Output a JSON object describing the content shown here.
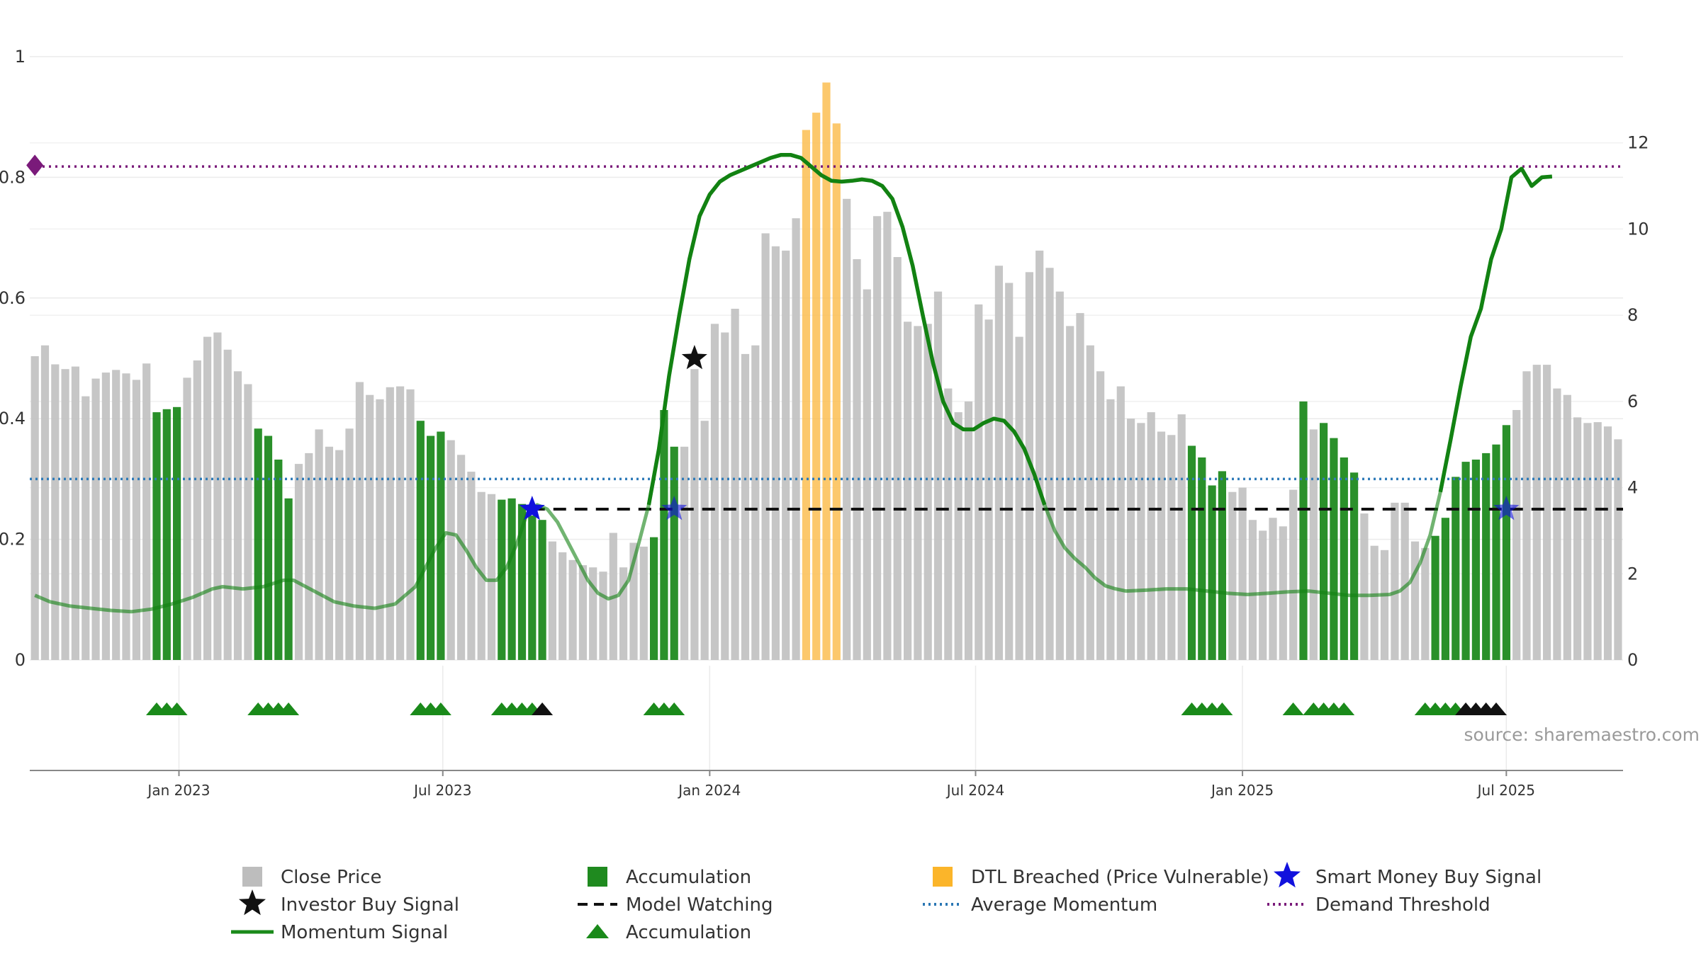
{
  "chart_data": {
    "type": "bar",
    "source_note": "source: sharemaestro.com",
    "left_axis": {
      "ylim": [
        0,
        1
      ],
      "ticks": [
        "0",
        "0.2",
        "0.4",
        "0.6",
        "0.8",
        "1"
      ],
      "tick_values": [
        0,
        0.2,
        0.4,
        0.6,
        0.8,
        1
      ]
    },
    "right_axis": {
      "ylim": [
        0,
        14
      ],
      "ticks": [
        "0",
        "2",
        "4",
        "6",
        "8",
        "10",
        "12"
      ],
      "tick_values": [
        0,
        2,
        4,
        6,
        8,
        10,
        12
      ]
    },
    "x_axis": {
      "tick_labels": [
        "Jan 2023",
        "Jul 2023",
        "Jan 2024",
        "Jul 2024",
        "Jan 2025",
        "Jul 2025"
      ],
      "tick_positions": [
        14.7,
        40.7,
        67.0,
        93.2,
        119.5,
        145.5
      ],
      "range": [
        0,
        157
      ]
    },
    "close_price_values": [
      7.05,
      7.3,
      6.86,
      6.75,
      6.81,
      6.12,
      6.53,
      6.67,
      6.73,
      6.65,
      6.5,
      6.88,
      5.75,
      5.82,
      5.87,
      6.55,
      6.95,
      7.5,
      7.6,
      7.2,
      6.7,
      6.4,
      5.37,
      5.2,
      4.65,
      3.75,
      4.55,
      4.8,
      5.35,
      4.95,
      4.87,
      5.37,
      6.45,
      6.15,
      6.05,
      6.33,
      6.35,
      6.28,
      5.55,
      5.2,
      5.3,
      5.1,
      4.76,
      4.37,
      3.9,
      3.85,
      3.72,
      3.75,
      3.62,
      3.35,
      3.25,
      2.75,
      2.5,
      2.32,
      2.2,
      2.15,
      2.05,
      2.95,
      2.15,
      2.72,
      2.63,
      2.85,
      5.8,
      4.95,
      4.95,
      6.75,
      5.55,
      7.8,
      7.6,
      8.15,
      7.1,
      7.3,
      9.9,
      9.6,
      9.5,
      10.25,
      12.3,
      12.7,
      13.4,
      12.45,
      10.7,
      9.3,
      8.6,
      10.3,
      10.4,
      9.35,
      7.85,
      7.75,
      7.8,
      8.55,
      6.3,
      5.75,
      6.0,
      8.25,
      7.9,
      9.15,
      8.75,
      7.5,
      9.0,
      9.5,
      9.1,
      8.55,
      7.75,
      8.05,
      7.3,
      6.7,
      6.05,
      6.35,
      5.6,
      5.5,
      5.75,
      5.3,
      5.22,
      5.7,
      4.97,
      4.7,
      4.05,
      4.38,
      3.9,
      4.0,
      3.25,
      3.0,
      3.3,
      3.1,
      3.95,
      6.0,
      5.35,
      5.5,
      5.15,
      4.7,
      4.35,
      3.4,
      2.65,
      2.55,
      3.65,
      3.65,
      2.75,
      2.6,
      2.88,
      3.3,
      4.25,
      4.6,
      4.65,
      4.8,
      5.0,
      5.45,
      5.8,
      6.7,
      6.85,
      6.85,
      6.3,
      6.15,
      5.63,
      5.5,
      5.52,
      5.42,
      5.12
    ],
    "bar_category": [
      "g",
      "g",
      "g",
      "g",
      "g",
      "g",
      "g",
      "g",
      "g",
      "g",
      "g",
      "g",
      "a",
      "a",
      "a",
      "g",
      "g",
      "g",
      "g",
      "g",
      "g",
      "g",
      "a",
      "a",
      "a",
      "a",
      "g",
      "g",
      "g",
      "g",
      "g",
      "g",
      "g",
      "g",
      "g",
      "g",
      "g",
      "g",
      "a",
      "a",
      "a",
      "g",
      "g",
      "g",
      "g",
      "g",
      "a",
      "a",
      "a",
      "a",
      "a",
      "g",
      "g",
      "g",
      "g",
      "g",
      "g",
      "g",
      "g",
      "g",
      "g",
      "a",
      "a",
      "a",
      "g",
      "g",
      "g",
      "g",
      "g",
      "g",
      "g",
      "g",
      "g",
      "g",
      "g",
      "g",
      "d",
      "d",
      "d",
      "d",
      "g",
      "g",
      "g",
      "g",
      "g",
      "g",
      "g",
      "g",
      "g",
      "g",
      "g",
      "g",
      "g",
      "g",
      "g",
      "g",
      "g",
      "g",
      "g",
      "g",
      "g",
      "g",
      "g",
      "g",
      "g",
      "g",
      "g",
      "g",
      "g",
      "g",
      "g",
      "g",
      "g",
      "g",
      "a",
      "a",
      "a",
      "a",
      "g",
      "g",
      "g",
      "g",
      "g",
      "g",
      "g",
      "a",
      "g",
      "a",
      "a",
      "a",
      "a",
      "g",
      "g",
      "g",
      "g",
      "g",
      "g",
      "g",
      "a",
      "a",
      "a",
      "a",
      "a",
      "a",
      "a",
      "a",
      "g",
      "g",
      "g",
      "g",
      "g",
      "g",
      "g",
      "g",
      "g",
      "g",
      "g",
      "g"
    ],
    "momentum_signal": {
      "name": "Momentum Signal",
      "points": [
        [
          0.5,
          1.5
        ],
        [
          2,
          1.35
        ],
        [
          4,
          1.25
        ],
        [
          6,
          1.2
        ],
        [
          8,
          1.15
        ],
        [
          10,
          1.12
        ],
        [
          12,
          1.18
        ],
        [
          14,
          1.3
        ],
        [
          16,
          1.45
        ],
        [
          18,
          1.65
        ],
        [
          19,
          1.7
        ],
        [
          21,
          1.65
        ],
        [
          23,
          1.7
        ],
        [
          25,
          1.85
        ],
        [
          26,
          1.85
        ],
        [
          28,
          1.6
        ],
        [
          30,
          1.35
        ],
        [
          32,
          1.25
        ],
        [
          34,
          1.2
        ],
        [
          36,
          1.3
        ],
        [
          38,
          1.7
        ],
        [
          40,
          2.6
        ],
        [
          41,
          2.95
        ],
        [
          42,
          2.9
        ],
        [
          43,
          2.55
        ],
        [
          44,
          2.15
        ],
        [
          45,
          1.85
        ],
        [
          46,
          1.85
        ],
        [
          47,
          2.15
        ],
        [
          48,
          2.7
        ],
        [
          49,
          3.4
        ],
        [
          50,
          3.6
        ],
        [
          51,
          3.5
        ],
        [
          52,
          3.2
        ],
        [
          53,
          2.75
        ],
        [
          54,
          2.3
        ],
        [
          55,
          1.85
        ],
        [
          56,
          1.55
        ],
        [
          57,
          1.42
        ],
        [
          58,
          1.5
        ],
        [
          59,
          1.85
        ],
        [
          60,
          2.7
        ],
        [
          61,
          3.6
        ],
        [
          62,
          4.9
        ],
        [
          63,
          6.6
        ],
        [
          64,
          8.0
        ],
        [
          65,
          9.3
        ],
        [
          66,
          10.3
        ],
        [
          67,
          10.8
        ],
        [
          68,
          11.1
        ],
        [
          69,
          11.25
        ],
        [
          71,
          11.45
        ],
        [
          73,
          11.65
        ],
        [
          74,
          11.72
        ],
        [
          75,
          11.72
        ],
        [
          76,
          11.65
        ],
        [
          77,
          11.45
        ],
        [
          78,
          11.25
        ],
        [
          79,
          11.12
        ],
        [
          80,
          11.1
        ],
        [
          81,
          11.12
        ],
        [
          82,
          11.15
        ],
        [
          83,
          11.12
        ],
        [
          84,
          11.0
        ],
        [
          85,
          10.7
        ],
        [
          86,
          10.05
        ],
        [
          87,
          9.15
        ],
        [
          88,
          8.0
        ],
        [
          89,
          6.9
        ],
        [
          90,
          6.0
        ],
        [
          91,
          5.5
        ],
        [
          92,
          5.35
        ],
        [
          93,
          5.35
        ],
        [
          94,
          5.5
        ],
        [
          95,
          5.6
        ],
        [
          96,
          5.55
        ],
        [
          97,
          5.3
        ],
        [
          98,
          4.9
        ],
        [
          99,
          4.3
        ],
        [
          100,
          3.6
        ],
        [
          101,
          3.0
        ],
        [
          102,
          2.6
        ],
        [
          103,
          2.35
        ],
        [
          104,
          2.15
        ],
        [
          105,
          1.9
        ],
        [
          106,
          1.72
        ],
        [
          107,
          1.65
        ],
        [
          108,
          1.6
        ],
        [
          110,
          1.62
        ],
        [
          112,
          1.65
        ],
        [
          114,
          1.65
        ],
        [
          116,
          1.6
        ],
        [
          118,
          1.55
        ],
        [
          120,
          1.52
        ],
        [
          122,
          1.55
        ],
        [
          124,
          1.58
        ],
        [
          126,
          1.6
        ],
        [
          128,
          1.55
        ],
        [
          130,
          1.5
        ],
        [
          132,
          1.5
        ],
        [
          134,
          1.52
        ],
        [
          135,
          1.6
        ],
        [
          136,
          1.8
        ],
        [
          137,
          2.25
        ],
        [
          138,
          2.9
        ],
        [
          139,
          3.9
        ],
        [
          140,
          5.1
        ],
        [
          141,
          6.35
        ],
        [
          142,
          7.5
        ],
        [
          143,
          8.15
        ],
        [
          144,
          9.3
        ],
        [
          145,
          10.0
        ],
        [
          146,
          11.2
        ],
        [
          147,
          11.4
        ],
        [
          148,
          11.0
        ],
        [
          149,
          11.2
        ],
        [
          150,
          11.22
        ]
      ]
    },
    "model_watching": {
      "name": "Model Watching",
      "value": 3.5,
      "x_start": 49
    },
    "average_momentum": {
      "name": "Average Momentum",
      "value": 4.2
    },
    "demand_threshold": {
      "name": "Demand Threshold",
      "value": 0.818
    },
    "demand_marker": {
      "x": 0.5,
      "value": 0.82
    },
    "smart_money_buy_signals": [
      {
        "x": 49,
        "y": 3.5,
        "opacity": 1.0
      },
      {
        "x": 63,
        "y": 3.5,
        "opacity": 0.6
      },
      {
        "x": 145,
        "y": 3.5,
        "opacity": 0.6
      }
    ],
    "investor_buy_signals": [
      {
        "x": 65,
        "y": 0.5
      }
    ],
    "accumulation_markers_green": [
      12,
      13,
      14,
      22,
      23,
      24,
      25,
      38,
      39,
      40,
      46,
      47,
      48,
      49,
      61,
      62,
      63,
      114,
      115,
      116,
      117,
      124,
      126,
      127,
      128,
      129,
      137,
      138,
      139,
      140
    ],
    "accumulation_markers_black": [
      50,
      141,
      142,
      143,
      144
    ],
    "legend": [
      {
        "label": "Close Price",
        "symbol": "square",
        "color": "#bdbdbd"
      },
      {
        "label": "Accumulation",
        "symbol": "square",
        "color": "#1f8a1f"
      },
      {
        "label": "DTL Breached (Price Vulnerable)",
        "symbol": "square",
        "color": "#fbb52a"
      },
      {
        "label": "Smart Money Buy Signal",
        "symbol": "star",
        "color": "#1111dd"
      },
      {
        "label": "Investor Buy Signal",
        "symbol": "star",
        "color": "#111111"
      },
      {
        "label": "Model Watching",
        "symbol": "dash",
        "color": "#111111"
      },
      {
        "label": "Average Momentum",
        "symbol": "dot",
        "color": "#2a77b4"
      },
      {
        "label": "Demand Threshold",
        "symbol": "dot",
        "color": "#7a1a7a"
      },
      {
        "label": "Momentum Signal",
        "symbol": "line",
        "color": "#1a8a1a"
      },
      {
        "label": "Accumulation",
        "symbol": "triangle",
        "color": "#1a8a1a"
      }
    ],
    "colors": {
      "close": "#c3c3c3",
      "accumulation": "#1f8a1f",
      "dtl": "#fbbe52",
      "momentum": "#128212",
      "avg": "#2f7bb8",
      "demand": "#7a1a7a",
      "model": "#111111",
      "smart": "#1111dd",
      "investor": "#111111"
    }
  }
}
